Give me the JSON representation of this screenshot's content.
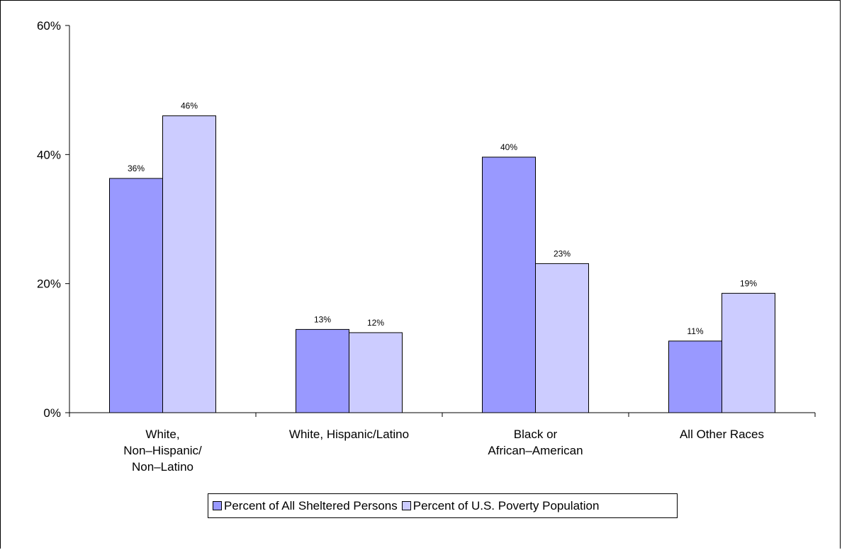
{
  "chart_data": {
    "type": "bar",
    "categories": [
      [
        "White,",
        "Non–Hispanic/",
        "Non–Latino"
      ],
      [
        "White, Hispanic/Latino"
      ],
      [
        "Black or",
        "African–American"
      ],
      [
        "All Other Races"
      ]
    ],
    "series": [
      {
        "name": "Percent of All Sheltered Persons",
        "values": [
          36.3,
          12.9,
          39.6,
          11.1
        ],
        "labels": [
          "36%",
          "13%",
          "40%",
          "11%"
        ],
        "color": "#9999ff"
      },
      {
        "name": "Percent of U.S. Poverty Population",
        "values": [
          46.0,
          12.4,
          23.1,
          18.5
        ],
        "labels": [
          "46%",
          "12%",
          "23%",
          "19%"
        ],
        "color": "#ccccff"
      }
    ],
    "ylim": [
      0,
      60
    ],
    "yticks": [
      {
        "value": 0,
        "label": "0%"
      },
      {
        "value": 20,
        "label": "20%"
      },
      {
        "value": 40,
        "label": "40%"
      },
      {
        "value": 60,
        "label": "60%"
      }
    ],
    "grid": false,
    "legend": "bottom"
  }
}
